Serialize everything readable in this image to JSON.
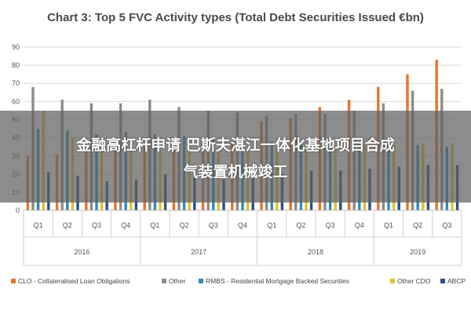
{
  "chart_data": {
    "type": "bar",
    "title": "Chart 3: Top 5 FVC Activity types (Total Debt Securities Issued €bn)",
    "xlabel": "",
    "ylabel": "",
    "ylim": [
      0,
      90
    ],
    "yticks": [
      0,
      10,
      20,
      30,
      40,
      50,
      60,
      70,
      80,
      90
    ],
    "grid": true,
    "legend_position": "bottom",
    "quarters": [
      "Q1",
      "Q2",
      "Q3",
      "Q4",
      "Q1",
      "Q2",
      "Q3",
      "Q4",
      "Q1",
      "Q2",
      "Q3",
      "Q4",
      "Q1",
      "Q2",
      "Q3"
    ],
    "years": [
      {
        "label": "2016",
        "span": 4
      },
      {
        "label": "2017",
        "span": 4
      },
      {
        "label": "2018",
        "span": 4
      },
      {
        "label": "2019",
        "span": 3
      }
    ],
    "series": [
      {
        "name": "CLO - Collateralised Loan Obligations",
        "color": "#e8742a",
        "values": [
          30,
          31,
          33,
          34,
          35,
          36,
          36,
          38,
          49,
          51,
          57,
          61,
          68,
          75,
          83
        ]
      },
      {
        "name": "Other",
        "color": "#8c8c8c",
        "values": [
          68,
          61,
          59,
          59,
          61,
          57,
          55,
          54,
          52,
          53,
          53,
          55,
          59,
          66,
          67
        ]
      },
      {
        "name": "RMBS - Residential Mortgage Backed Securities",
        "color": "#2e8bb3",
        "values": [
          45,
          44,
          42,
          43,
          42,
          41,
          40,
          39,
          38,
          37,
          37,
          37,
          37,
          36,
          35
        ]
      },
      {
        "name": "Other CDO",
        "color": "#e6c229",
        "values": [
          55,
          40,
          35,
          34,
          33,
          33,
          33,
          34,
          34,
          34,
          35,
          36,
          36,
          37,
          37
        ]
      },
      {
        "name": "ABCP",
        "color": "#2b4f86",
        "values": [
          21,
          19,
          16,
          17,
          20,
          18,
          17,
          18,
          20,
          22,
          22,
          23,
          24,
          25,
          25
        ]
      }
    ]
  },
  "overlay": {
    "line1": "金融高杠杆申请 巴斯夫湛江一体化基地项目合成",
    "line2": "气装置机械竣工"
  }
}
